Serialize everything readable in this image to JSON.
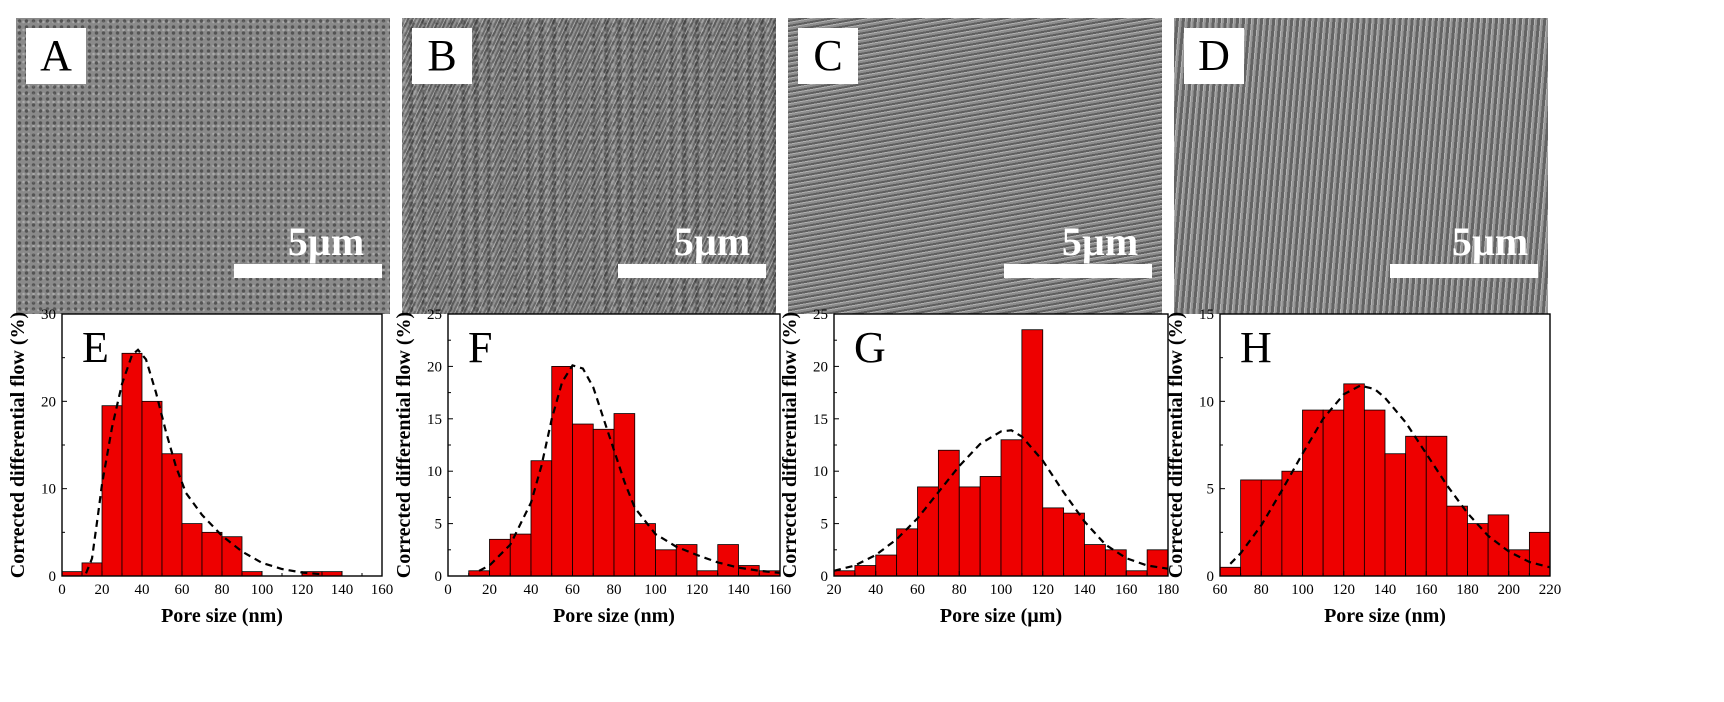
{
  "sem_images": [
    {
      "letter": "A",
      "scale_bar": "5µm"
    },
    {
      "letter": "B",
      "scale_bar": "5µm"
    },
    {
      "letter": "C",
      "scale_bar": "5µm"
    },
    {
      "letter": "D",
      "scale_bar": "5µm"
    }
  ],
  "colors": {
    "bar_fill": "#ee0000",
    "bar_edge": "#000000",
    "fit_line": "#000000"
  },
  "chart_data": [
    {
      "type": "bar",
      "panel_label": "E",
      "xlabel": "Pore size (nm)",
      "ylabel": "Corrected differential flow (%)",
      "xlim": [
        0,
        160
      ],
      "ylim": [
        0,
        30
      ],
      "xticks": [
        0,
        20,
        40,
        60,
        80,
        100,
        120,
        140,
        160
      ],
      "yticks": [
        0,
        10,
        20,
        30
      ],
      "bin_width": 10,
      "bins": [
        [
          0,
          10,
          0.5
        ],
        [
          10,
          20,
          1.5
        ],
        [
          20,
          30,
          19.5
        ],
        [
          30,
          40,
          25.5
        ],
        [
          40,
          50,
          20
        ],
        [
          50,
          60,
          14
        ],
        [
          60,
          70,
          6
        ],
        [
          70,
          80,
          5
        ],
        [
          80,
          90,
          4.5
        ],
        [
          90,
          100,
          0.5
        ],
        [
          120,
          130,
          0.5
        ],
        [
          130,
          140,
          0.5
        ]
      ],
      "fit_curve": [
        [
          12,
          0.3
        ],
        [
          15,
          2
        ],
        [
          18,
          7
        ],
        [
          20,
          10.5
        ],
        [
          25,
          17
        ],
        [
          30,
          22
        ],
        [
          35,
          25.3
        ],
        [
          38,
          25.9
        ],
        [
          42,
          24.8
        ],
        [
          47,
          21
        ],
        [
          52,
          16.5
        ],
        [
          57,
          12.5
        ],
        [
          62,
          9.5
        ],
        [
          70,
          7
        ],
        [
          80,
          4.6
        ],
        [
          90,
          2.8
        ],
        [
          100,
          1.5
        ],
        [
          110,
          0.8
        ],
        [
          120,
          0.4
        ],
        [
          130,
          0.2
        ]
      ]
    },
    {
      "type": "bar",
      "panel_label": "F",
      "xlabel": "Pore size (nm)",
      "ylabel": "Corrected differential flow (%)",
      "xlim": [
        0,
        160
      ],
      "ylim": [
        0,
        25
      ],
      "xticks": [
        0,
        20,
        40,
        60,
        80,
        100,
        120,
        140,
        160
      ],
      "yticks": [
        0,
        5,
        10,
        15,
        20,
        25
      ],
      "bin_width": 10,
      "bins": [
        [
          10,
          20,
          0.5
        ],
        [
          20,
          30,
          3.5
        ],
        [
          30,
          40,
          4
        ],
        [
          40,
          50,
          11
        ],
        [
          50,
          60,
          20
        ],
        [
          60,
          70,
          14.5
        ],
        [
          70,
          80,
          14
        ],
        [
          80,
          90,
          15.5
        ],
        [
          90,
          100,
          5
        ],
        [
          100,
          110,
          2.5
        ],
        [
          110,
          120,
          3
        ],
        [
          120,
          130,
          0.5
        ],
        [
          130,
          140,
          3
        ],
        [
          140,
          150,
          1
        ],
        [
          150,
          160,
          0.5
        ]
      ],
      "fit_curve": [
        [
          15,
          0.5
        ],
        [
          20,
          1
        ],
        [
          30,
          3
        ],
        [
          40,
          7
        ],
        [
          45,
          10.5
        ],
        [
          50,
          15
        ],
        [
          55,
          18.5
        ],
        [
          60,
          20.1
        ],
        [
          65,
          19.8
        ],
        [
          70,
          18
        ],
        [
          75,
          15
        ],
        [
          80,
          12
        ],
        [
          85,
          9
        ],
        [
          90,
          6.5
        ],
        [
          100,
          4
        ],
        [
          110,
          2.8
        ],
        [
          120,
          2
        ],
        [
          130,
          1.3
        ],
        [
          140,
          0.8
        ],
        [
          150,
          0.5
        ],
        [
          160,
          0.3
        ]
      ]
    },
    {
      "type": "bar",
      "panel_label": "G",
      "xlabel": "Pore size (µm)",
      "ylabel": "Corrected differential flow (%)",
      "xlim": [
        20,
        180
      ],
      "ylim": [
        0,
        25
      ],
      "xticks": [
        20,
        40,
        60,
        80,
        100,
        120,
        140,
        160,
        180
      ],
      "yticks": [
        0,
        5,
        10,
        15,
        20,
        25
      ],
      "bin_width": 10,
      "bins": [
        [
          20,
          30,
          0.5
        ],
        [
          30,
          40,
          1
        ],
        [
          40,
          50,
          2
        ],
        [
          50,
          60,
          4.5
        ],
        [
          60,
          70,
          8.5
        ],
        [
          70,
          80,
          12
        ],
        [
          80,
          90,
          8.5
        ],
        [
          90,
          100,
          9.5
        ],
        [
          100,
          110,
          13
        ],
        [
          110,
          120,
          23.5
        ],
        [
          120,
          130,
          6.5
        ],
        [
          130,
          140,
          6
        ],
        [
          140,
          150,
          3
        ],
        [
          150,
          160,
          2.5
        ],
        [
          160,
          170,
          0.5
        ],
        [
          170,
          180,
          2.5
        ]
      ],
      "fit_curve": [
        [
          20,
          0.5
        ],
        [
          30,
          1
        ],
        [
          40,
          2
        ],
        [
          50,
          3.5
        ],
        [
          60,
          5.5
        ],
        [
          70,
          8
        ],
        [
          80,
          10.5
        ],
        [
          90,
          12.6
        ],
        [
          100,
          13.8
        ],
        [
          105,
          13.9
        ],
        [
          110,
          13.3
        ],
        [
          120,
          11
        ],
        [
          130,
          8
        ],
        [
          140,
          5.2
        ],
        [
          150,
          3
        ],
        [
          160,
          1.7
        ],
        [
          170,
          1
        ],
        [
          180,
          0.7
        ]
      ]
    },
    {
      "type": "bar",
      "panel_label": "H",
      "xlabel": "Pore size (nm)",
      "ylabel": "Corrected differential flow (%)",
      "xlim": [
        60,
        220
      ],
      "ylim": [
        0,
        15
      ],
      "xticks": [
        60,
        80,
        100,
        120,
        140,
        160,
        180,
        200,
        220
      ],
      "yticks": [
        0,
        5,
        10,
        15
      ],
      "bin_width": 10,
      "bins": [
        [
          60,
          70,
          0.5
        ],
        [
          70,
          80,
          5.5
        ],
        [
          80,
          90,
          5.5
        ],
        [
          90,
          100,
          6
        ],
        [
          100,
          110,
          9.5
        ],
        [
          110,
          120,
          9.5
        ],
        [
          120,
          130,
          11
        ],
        [
          130,
          140,
          9.5
        ],
        [
          140,
          150,
          7
        ],
        [
          150,
          160,
          8
        ],
        [
          160,
          170,
          8
        ],
        [
          170,
          180,
          4
        ],
        [
          180,
          190,
          3
        ],
        [
          190,
          200,
          3.5
        ],
        [
          200,
          210,
          1.5
        ],
        [
          210,
          220,
          2.5
        ]
      ],
      "fit_curve": [
        [
          65,
          0.7
        ],
        [
          70,
          1.3
        ],
        [
          80,
          2.9
        ],
        [
          90,
          4.9
        ],
        [
          100,
          7
        ],
        [
          110,
          9
        ],
        [
          120,
          10.4
        ],
        [
          128,
          10.9
        ],
        [
          135,
          10.7
        ],
        [
          140,
          10.2
        ],
        [
          150,
          8.8
        ],
        [
          160,
          7
        ],
        [
          170,
          5.2
        ],
        [
          180,
          3.6
        ],
        [
          190,
          2.3
        ],
        [
          200,
          1.4
        ],
        [
          210,
          0.8
        ],
        [
          220,
          0.5
        ]
      ]
    }
  ]
}
